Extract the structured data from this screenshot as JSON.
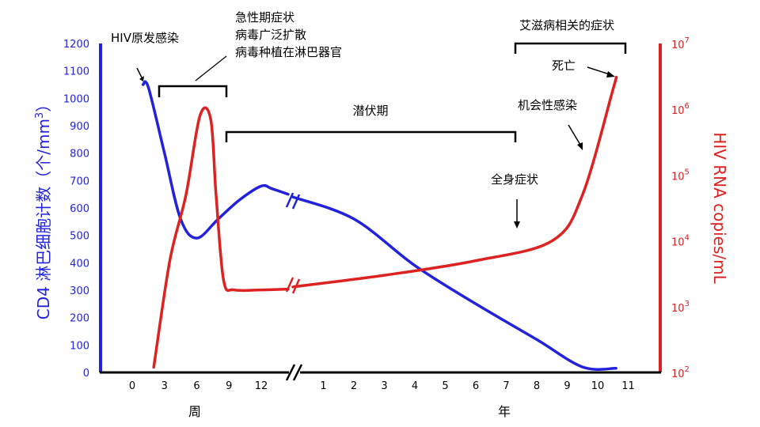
{
  "chart_data": {
    "type": "line",
    "left_axis": {
      "label": "CD4 淋巴细胞计数（个/mm",
      "label_sup": "3",
      "label_end": "）",
      "color": "#2222dd",
      "ylim": [
        0,
        1200
      ],
      "ticks": [
        "0",
        "100",
        "200",
        "300",
        "400",
        "500",
        "600",
        "700",
        "800",
        "900",
        "1000",
        "1100",
        "1200"
      ]
    },
    "right_axis": {
      "label": "HIV RNA copies/mL",
      "color": "#dd2222",
      "scale": "log",
      "ylim": [
        100,
        10000000
      ],
      "ticks": [
        {
          "base": "10",
          "exp": "2"
        },
        {
          "base": "10",
          "exp": "3"
        },
        {
          "base": "10",
          "exp": "4"
        },
        {
          "base": "10",
          "exp": "5"
        },
        {
          "base": "10",
          "exp": "6"
        },
        {
          "base": "10",
          "exp": "7"
        }
      ]
    },
    "x_axis": {
      "segments": [
        {
          "unit_label": "周",
          "ticks": [
            "0",
            "3",
            "6",
            "9",
            "12"
          ]
        },
        {
          "unit_label": "年",
          "ticks": [
            "1",
            "2",
            "3",
            "4",
            "5",
            "6",
            "7",
            "8",
            "9",
            "10",
            "11"
          ]
        }
      ]
    },
    "series": [
      {
        "id": "cd4",
        "color": "#2222dd",
        "segments": [
          {
            "axis": "weeks",
            "points": [
              [
                1.0,
                1050
              ],
              [
                1.5,
                1040
              ],
              [
                3.0,
                800
              ],
              [
                4.5,
                560
              ],
              [
                6.0,
                490
              ],
              [
                8.0,
                560
              ],
              [
                10.0,
                630
              ],
              [
                12.0,
                680
              ],
              [
                13.0,
                670
              ],
              [
                14.5,
                650
              ]
            ]
          },
          {
            "axis": "years",
            "points": [
              [
                0.0,
                640
              ],
              [
                2.0,
                560
              ],
              [
                4.0,
                390
              ],
              [
                6.0,
                250
              ],
              [
                8.0,
                120
              ],
              [
                9.5,
                20
              ],
              [
                10.6,
                15
              ]
            ]
          }
        ]
      },
      {
        "id": "hiv_rna",
        "color": "#dd2222",
        "segments": [
          {
            "axis": "weeks",
            "points": [
              [
                2.0,
                120
              ],
              [
                3.5,
                5000
              ],
              [
                5.0,
                50000
              ],
              [
                6.3,
                800000
              ],
              [
                7.3,
                700000
              ],
              [
                7.8,
                50000
              ],
              [
                8.5,
                2500
              ],
              [
                9.5,
                1800
              ],
              [
                12.0,
                1800
              ],
              [
                14.5,
                1850
              ]
            ]
          },
          {
            "axis": "years",
            "points": [
              [
                0.0,
                2000
              ],
              [
                3.0,
                3000
              ],
              [
                6.0,
                5000
              ],
              [
                8.5,
                10000
              ],
              [
                9.5,
                50000
              ],
              [
                10.5,
                2000000
              ],
              [
                10.6,
                3000000
              ]
            ]
          }
        ]
      }
    ],
    "annotations": {
      "primary": "HIV原发感染",
      "acute": [
        "急性期症状",
        "病毒广泛扩散",
        "病毒种植在淋巴器官"
      ],
      "latent": "潜伏期",
      "aids": "艾滋病相关的症状",
      "death": "死亡",
      "opportunistic": "机会性感染",
      "constitutional": "全身症状"
    }
  }
}
